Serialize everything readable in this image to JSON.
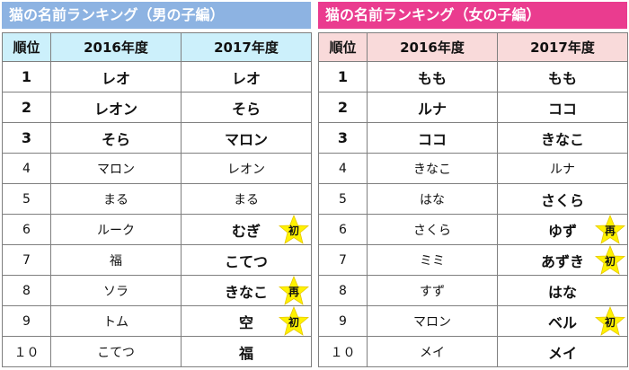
{
  "boys": {
    "title": "猫の名前ランキング（男の子編）",
    "headers": [
      "順位",
      "2016年度",
      "2017年度"
    ],
    "rows": [
      {
        "rank": "1",
        "y2016": "レオ",
        "y2017": "レオ",
        "badge": ""
      },
      {
        "rank": "2",
        "y2016": "レオン",
        "y2017": "そら",
        "badge": ""
      },
      {
        "rank": "3",
        "y2016": "そら",
        "y2017": "マロン",
        "badge": ""
      },
      {
        "rank": "4",
        "y2016": "マロン",
        "y2017": "レオン",
        "badge": ""
      },
      {
        "rank": "5",
        "y2016": "まる",
        "y2017": "まる",
        "badge": ""
      },
      {
        "rank": "6",
        "y2016": "ルーク",
        "y2017": "むぎ",
        "badge": "初"
      },
      {
        "rank": "7",
        "y2016": "福",
        "y2017": "こてつ",
        "badge": ""
      },
      {
        "rank": "8",
        "y2016": "ソラ",
        "y2017": "きなこ",
        "badge": "再"
      },
      {
        "rank": "9",
        "y2016": "トム",
        "y2017": "空",
        "badge": "初"
      },
      {
        "rank": "１０",
        "y2016": "こてつ",
        "y2017": "福",
        "badge": ""
      }
    ]
  },
  "girls": {
    "title": "猫の名前ランキング（女の子編）",
    "headers": [
      "順位",
      "2016年度",
      "2017年度"
    ],
    "rows": [
      {
        "rank": "1",
        "y2016": "もも",
        "y2017": "もも",
        "badge": ""
      },
      {
        "rank": "2",
        "y2016": "ルナ",
        "y2017": "ココ",
        "badge": ""
      },
      {
        "rank": "3",
        "y2016": "ココ",
        "y2017": "きなこ",
        "badge": ""
      },
      {
        "rank": "4",
        "y2016": "きなこ",
        "y2017": "ルナ",
        "badge": ""
      },
      {
        "rank": "5",
        "y2016": "はな",
        "y2017": "さくら",
        "badge": ""
      },
      {
        "rank": "6",
        "y2016": "さくら",
        "y2017": "ゆず",
        "badge": "再"
      },
      {
        "rank": "7",
        "y2016": "ミミ",
        "y2017": "あずき",
        "badge": "初"
      },
      {
        "rank": "8",
        "y2016": "すず",
        "y2017": "はな",
        "badge": ""
      },
      {
        "rank": "9",
        "y2016": "マロン",
        "y2017": "ベル",
        "badge": "初"
      },
      {
        "rank": "１０",
        "y2016": "メイ",
        "y2017": "メイ",
        "badge": ""
      }
    ]
  },
  "colors": {
    "boys_banner": "#8db3e2",
    "girls_banner": "#ea3c8f",
    "boys_header": "#ccf0fb",
    "girls_header": "#f9dada",
    "star": "#fff200"
  }
}
